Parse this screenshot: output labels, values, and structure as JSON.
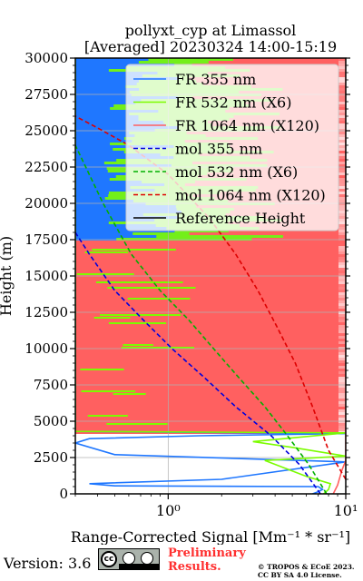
{
  "chart_data": {
    "type": "line",
    "title": "pollyxt_cyp at Limassol",
    "subtitle": "[Averaged] 20230324 14:00-15:19",
    "xlabel": "Range-Corrected Signal [Mm⁻¹ * sr⁻¹]",
    "ylabel": "Height (m)",
    "xscale": "log",
    "xlim": [
      0.3,
      10
    ],
    "ylim": [
      0,
      30000
    ],
    "x_ticks": [
      "10⁰",
      "10¹"
    ],
    "y_ticks": [
      "0",
      "2500",
      "5000",
      "7500",
      "10000",
      "12500",
      "15000",
      "17500",
      "20000",
      "22500",
      "25000",
      "27500",
      "30000"
    ],
    "grid": true,
    "legend_position": "upper-right",
    "series": [
      {
        "name": "FR 355 nm",
        "color": "#1f77ff",
        "style": "solid",
        "x": [
          6.5,
          7.0,
          7.4,
          7.0,
          0.5,
          0.36,
          2.0,
          10,
          0.5,
          0.3,
          0.36,
          1.5,
          10,
          0.3,
          0.3,
          0.3
        ],
        "y": [
          0,
          150,
          300,
          500,
          550,
          700,
          1000,
          2200,
          2700,
          3500,
          3800,
          4000,
          4150,
          4300,
          17500,
          30000
        ]
      },
      {
        "name": "FR 532 nm (X6)",
        "color": "#7cfc00",
        "style": "solid",
        "x": [
          7.5,
          8.0,
          8.2,
          6.0,
          3.5,
          10,
          5.0,
          3.0,
          10,
          0.3,
          0.3
        ],
        "y": [
          0,
          300,
          700,
          1200,
          2300,
          2600,
          3200,
          3600,
          4200,
          4300,
          30000
        ]
      },
      {
        "name": "FR 1064 nm (X120)",
        "color": "#ff6060",
        "style": "solid",
        "x": [
          8.5,
          9.0,
          9.5,
          10,
          10,
          10
        ],
        "y": [
          0,
          600,
          1600,
          2300,
          4300,
          30000
        ]
      },
      {
        "name": "mol 355 nm",
        "color": "#0000dd",
        "style": "dashed",
        "x": [
          7.2,
          5.5,
          3.8,
          2.4,
          1.6,
          1.05,
          0.72,
          0.5,
          0.36,
          0.3
        ],
        "y": [
          0,
          2000,
          4000,
          6000,
          8000,
          10000,
          12000,
          14000,
          16500,
          18000
        ]
      },
      {
        "name": "mol 532 nm (X6)",
        "color": "#00b000",
        "style": "dashed",
        "x": [
          7.8,
          6.2,
          4.7,
          3.5,
          2.5,
          1.8,
          1.3,
          0.9,
          0.62,
          0.43,
          0.3
        ],
        "y": [
          0,
          2000,
          4000,
          6000,
          8000,
          10000,
          12000,
          14000,
          16500,
          20000,
          24000
        ]
      },
      {
        "name": "mol 1064 nm (X120)",
        "color": "#dd0000",
        "style": "dashed",
        "x": [
          10,
          8.0,
          6.5,
          5.2,
          4.1,
          3.2,
          2.4,
          1.7,
          1.0,
          0.6,
          0.4,
          0.3
        ],
        "y": [
          1000,
          3000,
          6000,
          9000,
          11500,
          14000,
          16500,
          19000,
          22000,
          24000,
          25200,
          26000
        ]
      },
      {
        "name": "Reference Height",
        "color": "#000000",
        "style": "solid",
        "x": [],
        "y": []
      }
    ]
  },
  "footer": {
    "version": "Version: 3.6",
    "license_badge": {
      "cc": "cc",
      "by": "BY",
      "sa": "SA"
    },
    "preliminary_line1": "Preliminary",
    "preliminary_line2": "Results.",
    "copyright_line1": "© TROPOS & ECoE 2023.",
    "copyright_line2": "CC BY SA 4.0 License."
  }
}
